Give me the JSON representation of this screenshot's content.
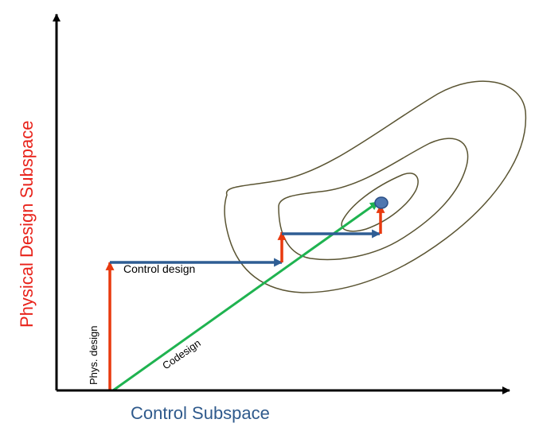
{
  "axes": {
    "x_label": "Control Subspace",
    "y_label": "Physical Design Subspace",
    "x_label_color": "#2f5a8c",
    "y_label_color": "#e8231b"
  },
  "annotations": {
    "phys_design": "Phys. design",
    "control_design": "Control design",
    "codesign": "Codesign"
  },
  "colors": {
    "axis": "#000000",
    "contour": "#5a5432",
    "physical_step": "#e8390e",
    "control_step": "#2e5d94",
    "codesign": "#1fb350",
    "optimum_fill": "#4f77b0",
    "optimum_stroke": "#2a4f86"
  }
}
